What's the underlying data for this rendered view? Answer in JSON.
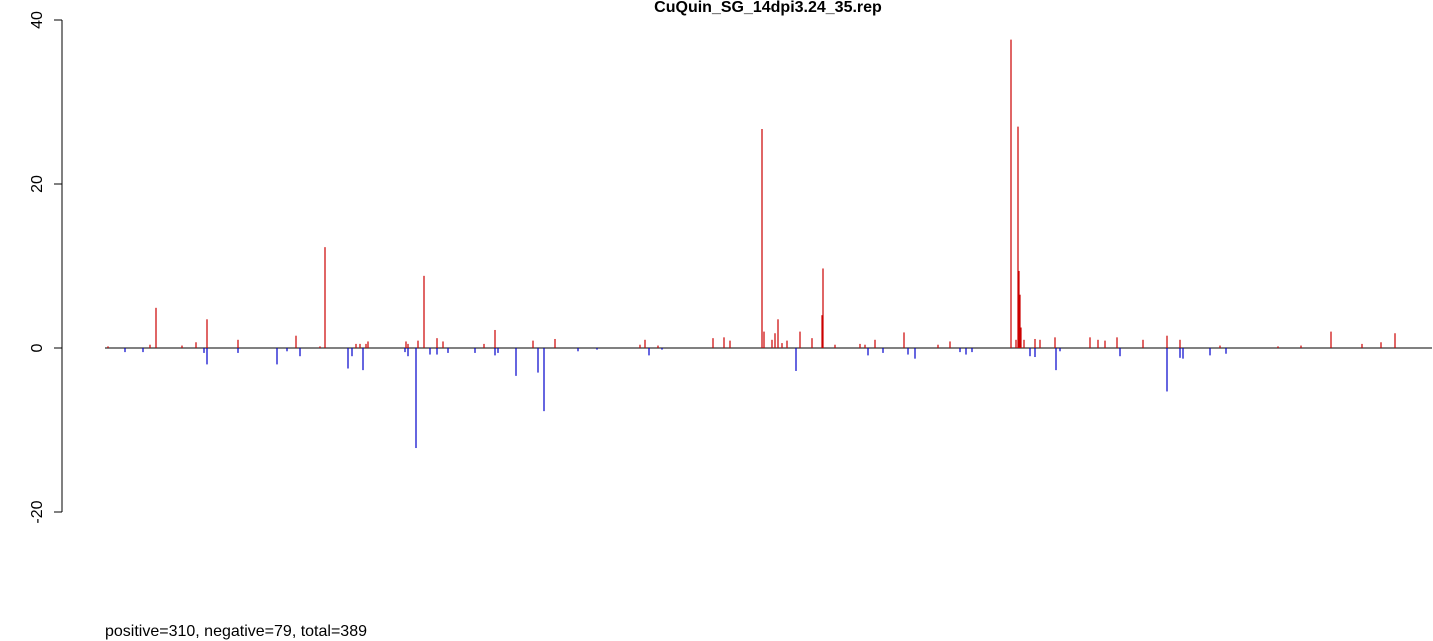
{
  "chart_data": {
    "type": "bar",
    "title": "CuQuin_SG_14dpi3.24_35.rep",
    "footer": "positive=310, negative=79, total=389",
    "ylim": [
      -20,
      40
    ],
    "yticks": [
      -20,
      0,
      20,
      40
    ],
    "xlim": [
      0,
      1327
    ],
    "series": [
      {
        "name": "positive",
        "color": "#cc0000",
        "x": [
          3,
          45,
          51,
          77,
          91,
          102,
          133,
          191,
          215,
          220,
          251,
          255,
          261,
          263,
          301,
          303,
          313,
          319,
          332,
          338,
          379,
          390,
          428,
          450,
          535,
          540,
          553,
          608,
          619,
          625,
          657,
          659,
          667,
          670,
          673,
          677,
          682,
          695,
          707,
          717,
          718,
          730,
          755,
          760,
          770,
          799,
          833,
          845,
          906,
          911,
          913,
          914,
          915,
          916,
          919,
          930,
          935,
          950,
          985,
          993,
          1000,
          1012,
          1038,
          1062,
          1075,
          1115,
          1173,
          1196,
          1226,
          1257,
          1276,
          1290
        ],
        "values": [
          0.2,
          0.4,
          4.9,
          0.3,
          0.7,
          3.5,
          1.0,
          1.5,
          0.2,
          12.3,
          0.5,
          0.5,
          0.5,
          0.8,
          0.8,
          0.5,
          0.9,
          8.8,
          1.2,
          0.8,
          0.5,
          2.2,
          0.9,
          1.1,
          0.4,
          1.0,
          0.3,
          1.2,
          1.3,
          0.9,
          26.7,
          2.0,
          1.0,
          1.8,
          3.5,
          0.6,
          0.9,
          2.0,
          1.2,
          4.0,
          9.7,
          0.4,
          0.5,
          0.4,
          1.0,
          1.9,
          0.4,
          0.8,
          37.6,
          1.0,
          27.0,
          9.4,
          6.5,
          2.5,
          1.0,
          1.1,
          1.0,
          1.3,
          1.3,
          1.0,
          0.9,
          1.3,
          1.0,
          1.5,
          1.0,
          0.3,
          0.2,
          0.3,
          2.0,
          0.5,
          0.7,
          1.8
        ]
      },
      {
        "name": "negative",
        "color": "#0000cc",
        "x": [
          20,
          38,
          99,
          102,
          133,
          172,
          182,
          195,
          243,
          247,
          258,
          300,
          303,
          311,
          325,
          332,
          343,
          370,
          390,
          393,
          411,
          433,
          439,
          473,
          492,
          544,
          557,
          691,
          763,
          778,
          803,
          810,
          855,
          861,
          867,
          925,
          930,
          951,
          955,
          1015,
          1062,
          1075,
          1078,
          1105,
          1121
        ],
        "values": [
          -0.5,
          -0.5,
          -0.6,
          -2.0,
          -0.6,
          -2.0,
          -0.4,
          -1.0,
          -2.5,
          -1.0,
          -2.7,
          -0.5,
          -1.0,
          -12.2,
          -0.8,
          -0.8,
          -0.6,
          -0.6,
          -0.9,
          -0.6,
          -3.4,
          -3.0,
          -7.7,
          -0.4,
          -0.2,
          -0.9,
          -0.2,
          -2.8,
          -0.9,
          -0.6,
          -0.8,
          -1.3,
          -0.5,
          -0.8,
          -0.5,
          -1.0,
          -1.1,
          -2.7,
          -0.4,
          -1.0,
          -5.3,
          -1.2,
          -1.3,
          -0.9,
          -0.7
        ]
      }
    ]
  }
}
